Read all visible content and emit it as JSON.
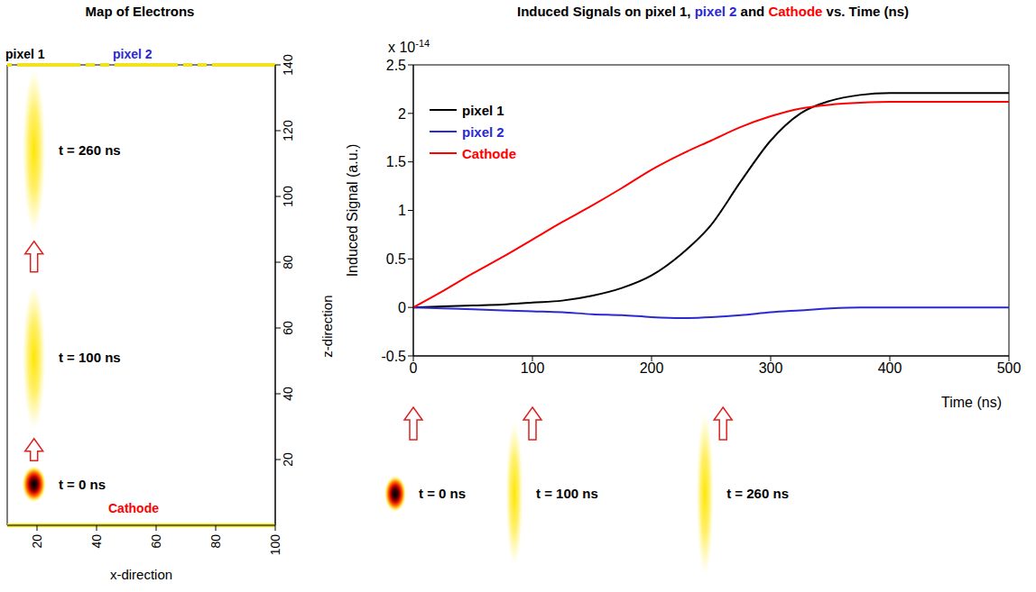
{
  "chart_data": [
    {
      "type": "map",
      "title": "Map of Electrons",
      "xlabel": "x-direction",
      "ylabel": "z-direction",
      "xlim": [
        10,
        100
      ],
      "xticks": [
        20,
        40,
        60,
        80,
        100
      ],
      "ylim": [
        0,
        140
      ],
      "yticks": [
        20,
        40,
        60,
        80,
        100,
        120,
        140
      ],
      "electrodes": [
        {
          "label": "pixel 1",
          "color": "#000000"
        },
        {
          "label": "pixel 2",
          "color": "#2a2ad0"
        },
        {
          "label": "Cathode",
          "color": "#ff0000"
        }
      ],
      "clouds": [
        {
          "label": "t = 0 ns",
          "time": 0,
          "x": [
            15,
            23
          ],
          "z": [
            7,
            18
          ]
        },
        {
          "label": "t = 100 ns",
          "time": 100,
          "x": [
            15,
            23
          ],
          "z": [
            28,
            74
          ]
        },
        {
          "label": "t = 260 ns",
          "time": 260,
          "x": [
            15,
            23
          ],
          "z": [
            88,
            140
          ]
        }
      ]
    },
    {
      "type": "line",
      "title": "Induced Signals on pixel 1, pixel 2 and Cathode vs. Time (ns)",
      "xlabel": "Time (ns)",
      "ylabel": "Induced Signal (a.u.)",
      "annotations": [
        {
          "text": "x 10",
          "superscript": "-14"
        }
      ],
      "x": [
        0,
        25,
        50,
        75,
        100,
        125,
        150,
        175,
        200,
        225,
        250,
        275,
        300,
        325,
        350,
        375,
        400,
        425,
        450,
        475,
        500
      ],
      "series": [
        {
          "name": "pixel 1",
          "color": "#000000",
          "values": [
            0,
            0.01,
            0.02,
            0.03,
            0.05,
            0.07,
            0.12,
            0.2,
            0.33,
            0.55,
            0.85,
            1.3,
            1.72,
            2.0,
            2.13,
            2.19,
            2.21,
            2.21,
            2.21,
            2.21,
            2.21
          ]
        },
        {
          "name": "pixel 2",
          "color": "#2a2ad0",
          "values": [
            0,
            -0.01,
            -0.02,
            -0.03,
            -0.04,
            -0.05,
            -0.07,
            -0.08,
            -0.1,
            -0.11,
            -0.1,
            -0.08,
            -0.05,
            -0.03,
            -0.01,
            0,
            0,
            0,
            0,
            0,
            0
          ]
        },
        {
          "name": "Cathode",
          "color": "#ff0000",
          "values": [
            0,
            0.17,
            0.35,
            0.52,
            0.7,
            0.88,
            1.05,
            1.23,
            1.42,
            1.58,
            1.72,
            1.86,
            1.97,
            2.05,
            2.09,
            2.11,
            2.12,
            2.12,
            2.12,
            2.12,
            2.12
          ]
        }
      ],
      "xlim": [
        0,
        500
      ],
      "xticks": [
        0,
        100,
        200,
        300,
        400,
        500
      ],
      "ylim": [
        -0.5,
        2.5
      ],
      "yticks": [
        -0.5,
        0,
        0.5,
        1,
        1.5,
        2,
        2.5
      ],
      "legend": "upper left",
      "grid": false
    }
  ]
}
